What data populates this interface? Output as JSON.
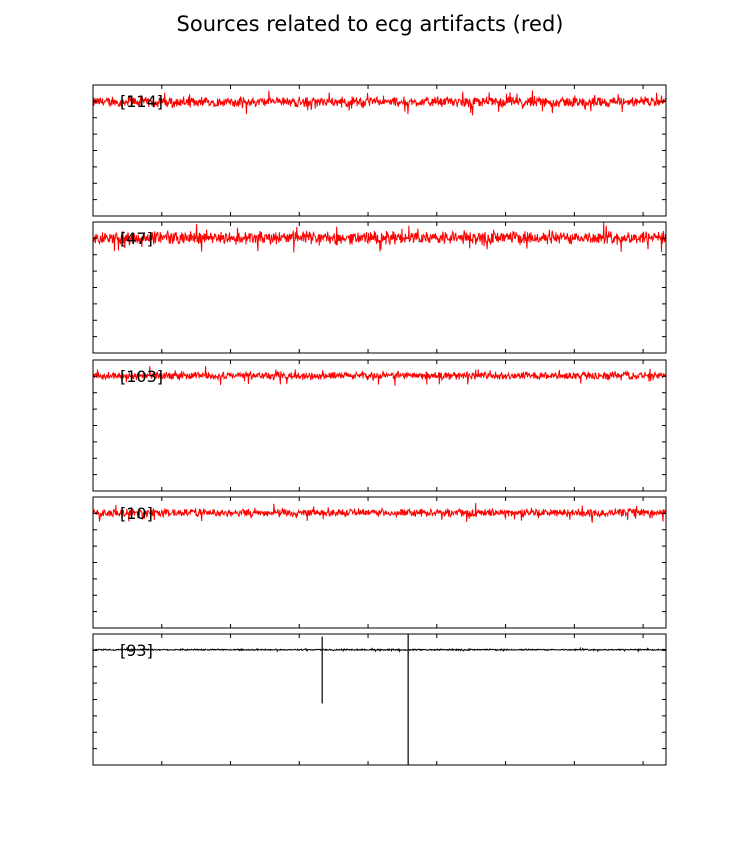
{
  "chart_data": {
    "type": "line",
    "title": "Sources related to ecg artifacts (red)",
    "xlabel": "",
    "ylabel": "",
    "grid": false,
    "colors": {
      "highlight": "#ff0000",
      "normal": "#000000"
    },
    "panels": [
      {
        "label": "[114]",
        "color": "#ff0000",
        "baseline": 0.87,
        "ylim": [
          0,
          1
        ],
        "noise_amplitude": 0.045,
        "spikes": []
      },
      {
        "label": "[47]",
        "color": "#ff0000",
        "baseline": 0.88,
        "ylim": [
          0,
          1
        ],
        "noise_amplitude": 0.06,
        "spikes": []
      },
      {
        "label": "[103]",
        "color": "#ff0000",
        "baseline": 0.88,
        "ylim": [
          0,
          1
        ],
        "noise_amplitude": 0.035,
        "spikes": []
      },
      {
        "label": "[10]",
        "color": "#ff0000",
        "baseline": 0.88,
        "ylim": [
          0,
          1
        ],
        "noise_amplitude": 0.035,
        "spikes": []
      },
      {
        "label": "[93]",
        "color": "#000000",
        "baseline": 0.88,
        "ylim": [
          0,
          1
        ],
        "noise_amplitude": 0.006,
        "spikes": [
          {
            "x": 0.4,
            "low": 0.47,
            "high": 0.98
          },
          {
            "x": 0.55,
            "low": 0.0,
            "high": 1.0
          }
        ]
      }
    ]
  }
}
